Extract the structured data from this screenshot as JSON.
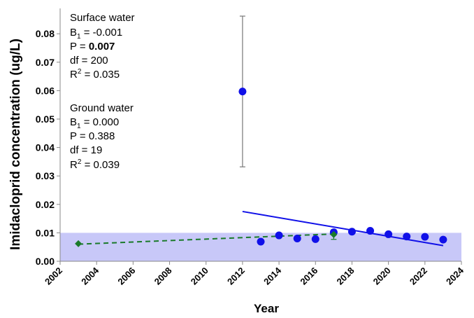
{
  "chart_data": {
    "type": "scatter",
    "title": "",
    "xlabel": "Year",
    "ylabel": "Imidacloprid concentration  (ug/L)",
    "xlim": [
      2002,
      2024
    ],
    "ylim": [
      0.0,
      0.085
    ],
    "x_ticks": [
      "2002",
      "2004",
      "2006",
      "2008",
      "2010",
      "2012",
      "2014",
      "2016",
      "2018",
      "2020",
      "2022",
      "2024"
    ],
    "y_ticks": [
      "0.00",
      "0.01",
      "0.02",
      "0.03",
      "0.04",
      "0.05",
      "0.06",
      "0.07",
      "0.08"
    ],
    "threshold_band": {
      "y_range": [
        0.0,
        0.01
      ],
      "color": "#c8c8f8"
    },
    "grid": false,
    "series": [
      {
        "marker": "circle",
        "color": "#1010e8",
        "points": [
          {
            "x": 2012,
            "y": 0.0597,
            "err": 0.0265
          },
          {
            "x": 2013,
            "y": 0.0069
          },
          {
            "x": 2014,
            "y": 0.0091
          },
          {
            "x": 2015,
            "y": 0.008
          },
          {
            "x": 2016,
            "y": 0.0078
          },
          {
            "x": 2017,
            "y": 0.0102
          },
          {
            "x": 2018,
            "y": 0.0104
          },
          {
            "x": 2019,
            "y": 0.0107
          },
          {
            "x": 2020,
            "y": 0.0095
          },
          {
            "x": 2021,
            "y": 0.0087
          },
          {
            "x": 2022,
            "y": 0.0086
          },
          {
            "x": 2023,
            "y": 0.0076
          }
        ],
        "trendline": {
          "x": [
            2012,
            2023
          ],
          "y": [
            0.0175,
            0.0055
          ],
          "style": "solid"
        }
      },
      {
        "marker": "diamond",
        "color": "#1a7a2a",
        "points": [
          {
            "x": 2003,
            "y": 0.0062
          },
          {
            "x": 2017,
            "y": 0.0094,
            "err": 0.0017
          }
        ],
        "trendline": {
          "x": [
            2003,
            2017
          ],
          "y": [
            0.006,
            0.0096
          ],
          "style": "dashed"
        }
      }
    ],
    "annotations": {
      "surface": {
        "title": "Surface water",
        "b1_label": "B",
        "b1_sub": "1",
        "b1_value": " = -0.001",
        "p_label": "P = ",
        "p_value": "0.007",
        "df": "df = 200",
        "r2_label": "R",
        "r2_sup": "2",
        "r2_value": " = 0.035"
      },
      "ground": {
        "title": "Ground water",
        "b1_label": "B",
        "b1_sub": "1",
        "b1_value": " = 0.000",
        "p": "P = 0.388",
        "df": "df = 19",
        "r2_label": "R",
        "r2_sup": "2",
        "r2_value": " = 0.039"
      }
    }
  }
}
